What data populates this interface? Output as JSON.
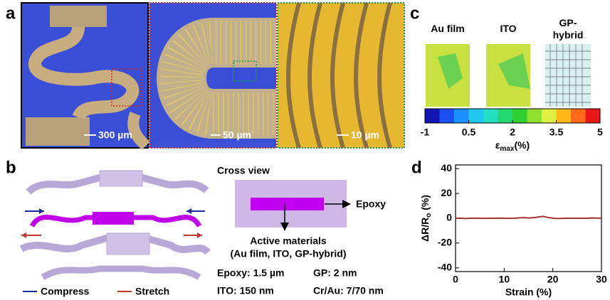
{
  "panel_labels": [
    "a",
    "b",
    "c",
    "d"
  ],
  "panel_a": {
    "scale_bars": [
      "300 µm",
      "50 µm",
      "10 µm"
    ]
  },
  "panel_b": {
    "legend": [
      {
        "name": "Compress",
        "color": "#1a2aa0"
      },
      {
        "name": "Stretch",
        "color": "#c03a2e"
      }
    ],
    "cross_view": {
      "title": "Cross view",
      "epoxy_label": "Epoxy",
      "active_label": "Active materials",
      "active_detail": "(Au film, ITO, GP-hybrid)"
    },
    "thicknesses": [
      "Epoxy: 1.5 µm",
      "GP: 2 nm",
      "ITO: 150 nm",
      "Cr/Au: 7/70 nm"
    ]
  },
  "panel_c": {
    "samples": [
      "Au film",
      "ITO",
      "GP-hybrid"
    ],
    "colorbar": {
      "lim": [
        -1,
        5
      ],
      "ticks": [
        -1,
        0.5,
        2,
        3.5,
        5
      ],
      "colors": [
        "#1414b4",
        "#1a50f0",
        "#1a90ff",
        "#20c8f0",
        "#24e0c0",
        "#22d870",
        "#30d030",
        "#90e030",
        "#e0f040",
        "#ffb818",
        "#ff6a18",
        "#e81818"
      ],
      "label": {
        "symbol": "ε",
        "subscript": "max",
        "unit": "(%)"
      }
    }
  },
  "chart_data": {
    "type": "line",
    "x": [
      0,
      1,
      2,
      3,
      4,
      5,
      6,
      7,
      8,
      9,
      10,
      11,
      12,
      13,
      14,
      15,
      16,
      17,
      18,
      19,
      20,
      21,
      22,
      23,
      24,
      25,
      26,
      27,
      28,
      29,
      30
    ],
    "series": [
      {
        "color": "#a83232",
        "values": [
          0,
          0,
          -0.2,
          0,
          0.1,
          0,
          -0.1,
          0,
          0,
          0.1,
          0,
          -0.1,
          0,
          0.3,
          0.5,
          0.2,
          0.4,
          1,
          1.5,
          0.6,
          0,
          -0.2,
          -0.1,
          0,
          0,
          0.1,
          0,
          0,
          0.2,
          0.1,
          0
        ]
      }
    ],
    "xlim": [
      0,
      30
    ],
    "ylim": [
      -43,
      43
    ],
    "xticks": [
      0,
      10,
      20,
      30
    ],
    "yticks": [
      -40,
      -20,
      0,
      20,
      40
    ],
    "xlabel": "Strain (%)",
    "ylabel": {
      "main": "ΔR/R",
      "subscript": "o",
      "unit": " (%)"
    }
  }
}
